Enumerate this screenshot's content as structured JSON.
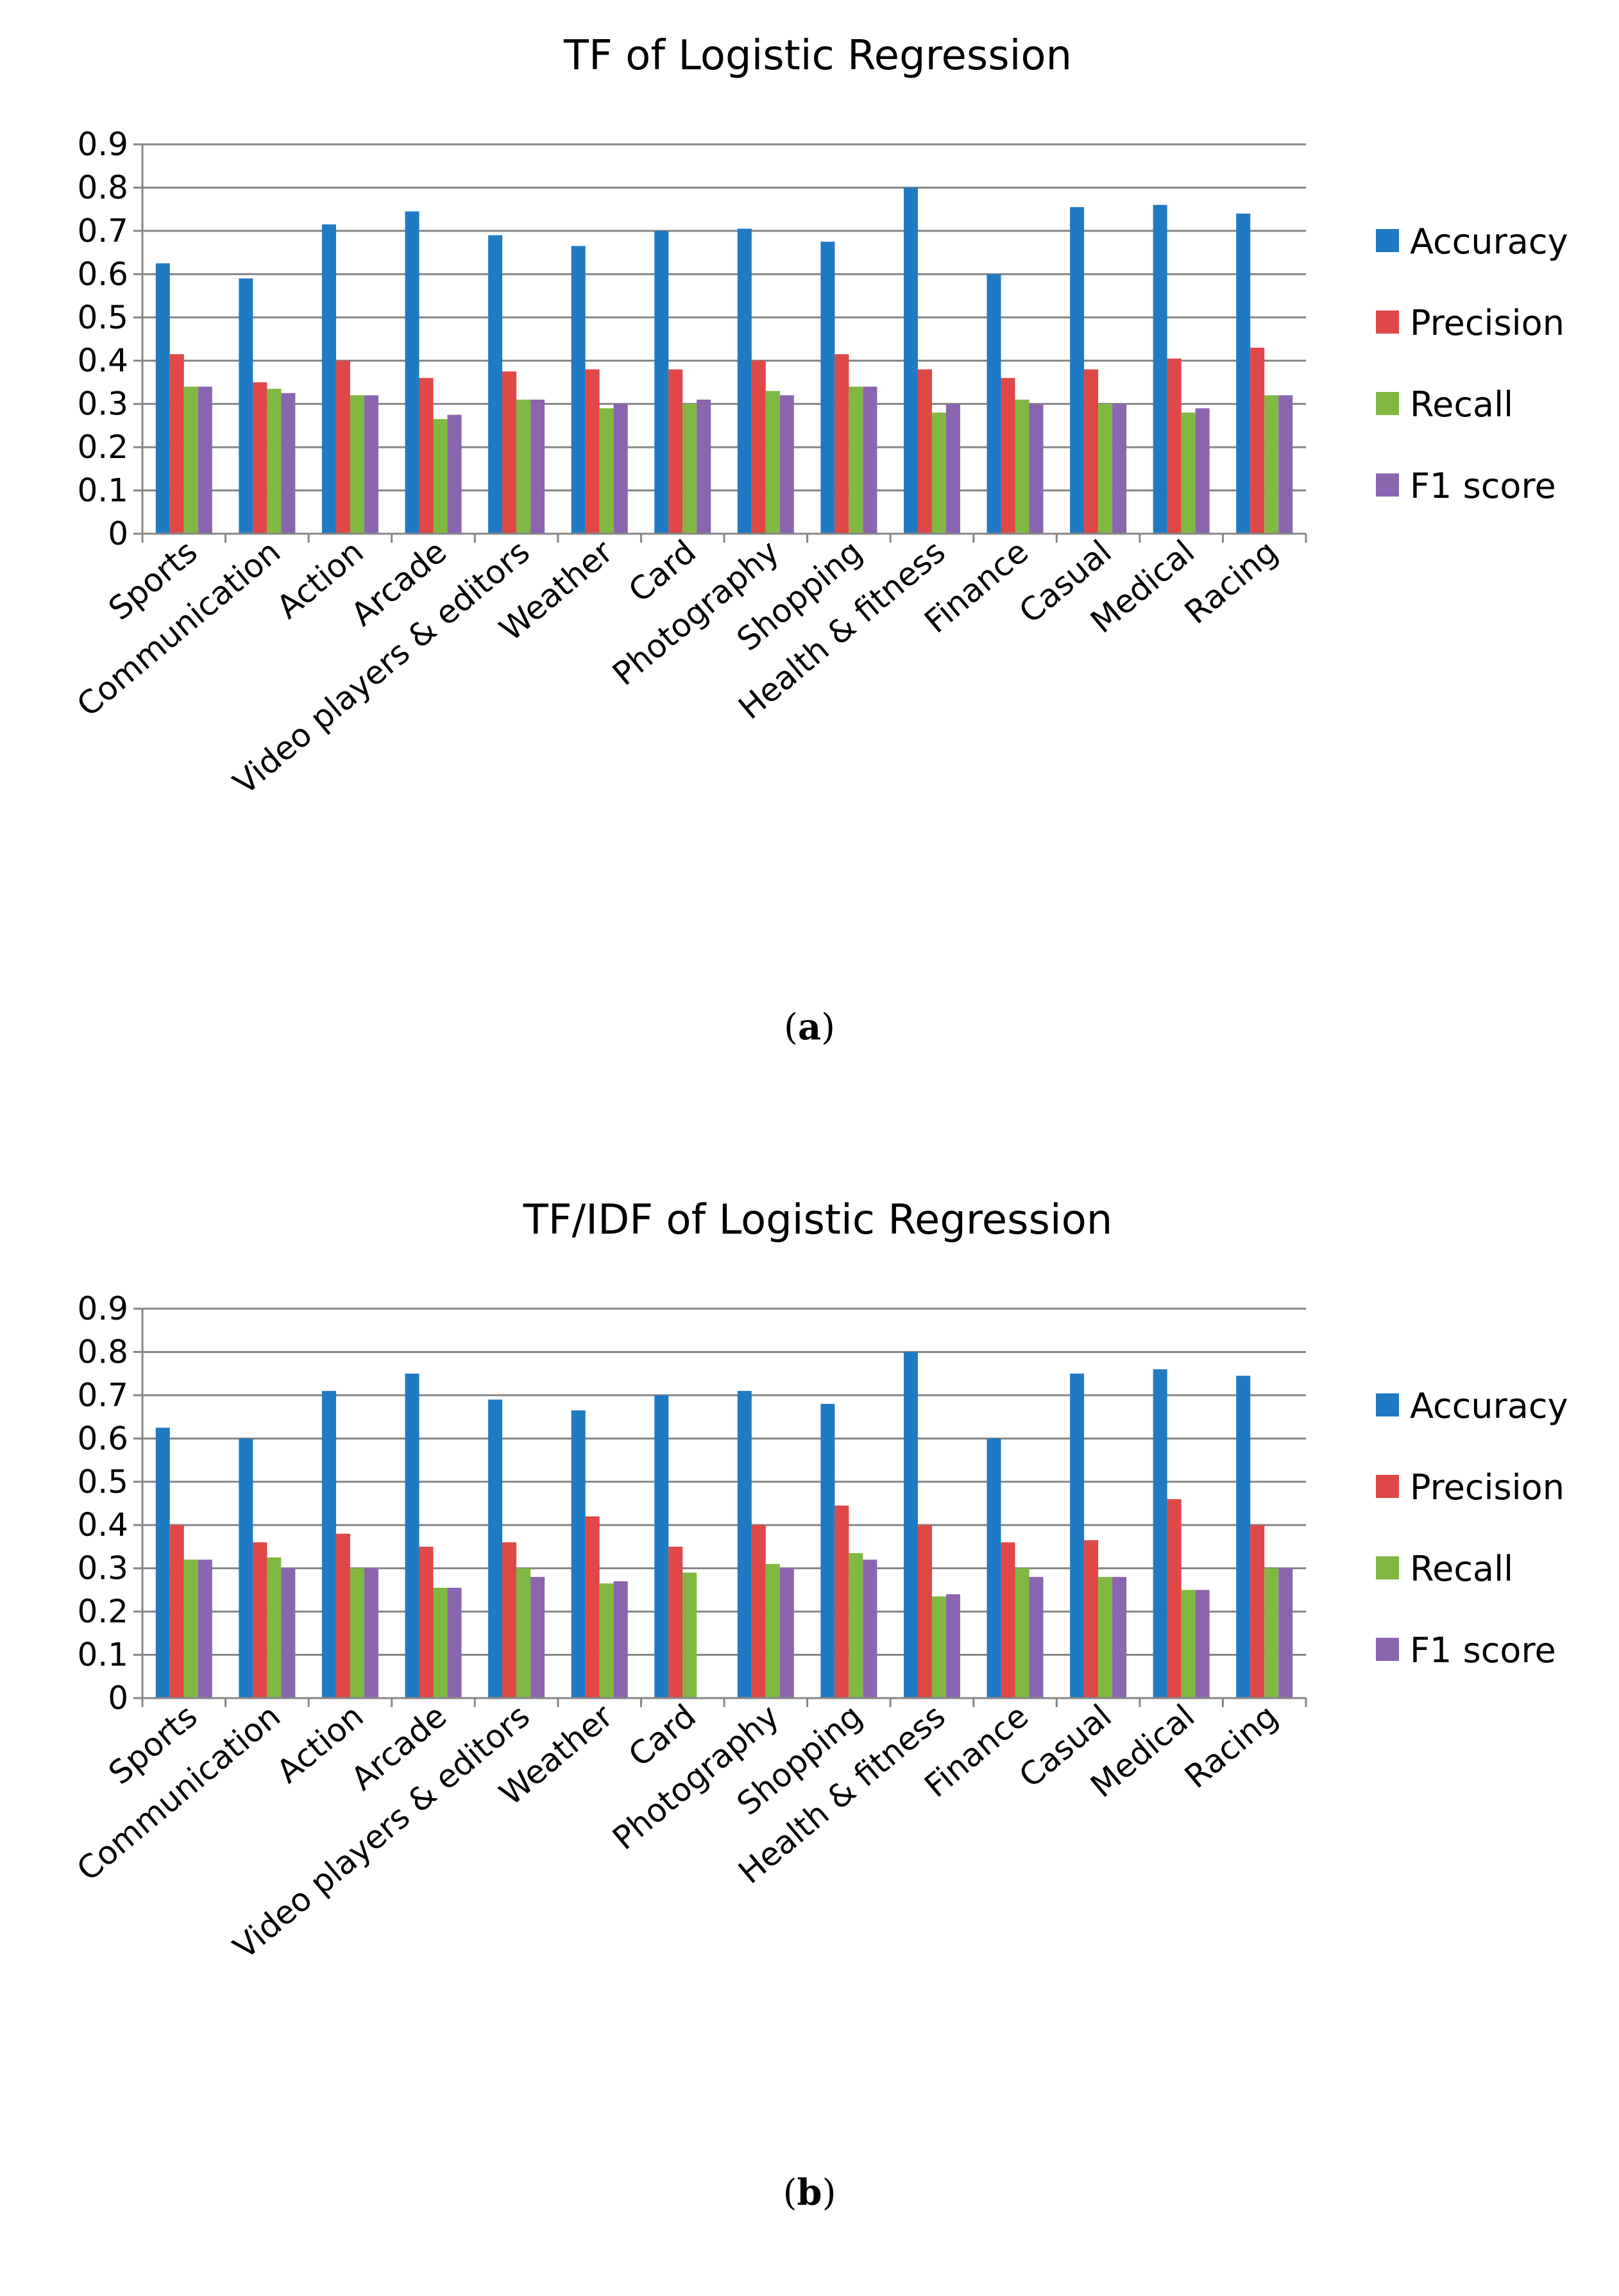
{
  "colors": {
    "Accuracy": "#1f7ac4",
    "Precision": "#e04848",
    "Recall": "#80b842",
    "F1 score": "#8a65b0",
    "grid": "#868686",
    "axis": "#868686"
  },
  "chart_data": [
    {
      "type": "bar",
      "title": "TF of Logistic Regression",
      "panel_label": "a",
      "xlabel": "",
      "ylabel": "",
      "ylim": [
        0,
        0.9
      ],
      "yticks": [
        "0",
        "0.1",
        "0.2",
        "0.3",
        "0.4",
        "0.5",
        "0.6",
        "0.7",
        "0.8",
        "0.9"
      ],
      "grid": true,
      "legend": "right",
      "categories": [
        "Sports",
        "Communication",
        "Action",
        "Arcade",
        "Video players & editors",
        "Weather",
        "Card",
        "Photography",
        "Shopping",
        "Health & fitness",
        "Finance",
        "Casual",
        "Medical",
        "Racing"
      ],
      "series": [
        {
          "name": "Accuracy",
          "values": [
            0.625,
            0.59,
            0.715,
            0.745,
            0.69,
            0.665,
            0.7,
            0.705,
            0.675,
            0.8,
            0.6,
            0.755,
            0.76,
            0.74
          ]
        },
        {
          "name": "Precision",
          "values": [
            0.415,
            0.35,
            0.4,
            0.36,
            0.375,
            0.38,
            0.38,
            0.4,
            0.415,
            0.38,
            0.36,
            0.38,
            0.405,
            0.43
          ]
        },
        {
          "name": "Recall",
          "values": [
            0.34,
            0.335,
            0.32,
            0.265,
            0.31,
            0.29,
            0.3,
            0.33,
            0.34,
            0.28,
            0.31,
            0.3,
            0.28,
            0.32
          ]
        },
        {
          "name": "F1 score",
          "values": [
            0.34,
            0.325,
            0.32,
            0.275,
            0.31,
            0.3,
            0.31,
            0.32,
            0.34,
            0.3,
            0.3,
            0.3,
            0.29,
            0.32
          ]
        }
      ]
    },
    {
      "type": "bar",
      "title": "TF/IDF of Logistic Regression",
      "panel_label": "b",
      "xlabel": "",
      "ylabel": "",
      "ylim": [
        0,
        0.9
      ],
      "yticks": [
        "0",
        "0.1",
        "0.2",
        "0.3",
        "0.4",
        "0.5",
        "0.6",
        "0.7",
        "0.8",
        "0.9"
      ],
      "grid": true,
      "legend": "right",
      "categories": [
        "Sports",
        "Communication",
        "Action",
        "Arcade",
        "Video players & editors",
        "Weather",
        "Card",
        "Photography",
        "Shopping",
        "Health & fitness",
        "Finance",
        "Casual",
        "Medical",
        "Racing"
      ],
      "series": [
        {
          "name": "Accuracy",
          "values": [
            0.625,
            0.6,
            0.71,
            0.75,
            0.69,
            0.665,
            0.7,
            0.71,
            0.68,
            0.8,
            0.6,
            0.75,
            0.76,
            0.745
          ]
        },
        {
          "name": "Precision",
          "values": [
            0.4,
            0.36,
            0.38,
            0.35,
            0.36,
            0.42,
            0.35,
            0.4,
            0.445,
            0.4,
            0.36,
            0.365,
            0.46,
            0.4
          ]
        },
        {
          "name": "Recall",
          "values": [
            0.32,
            0.325,
            0.3,
            0.255,
            0.3,
            0.265,
            0.29,
            0.31,
            0.335,
            0.235,
            0.3,
            0.28,
            0.25,
            0.3
          ]
        },
        {
          "name": "F1 score",
          "values": [
            0.32,
            0.3,
            0.3,
            0.255,
            0.28,
            0.27,
            0,
            0.3,
            0.32,
            0.24,
            0.28,
            0.28,
            0.25,
            0.3
          ]
        }
      ]
    }
  ]
}
